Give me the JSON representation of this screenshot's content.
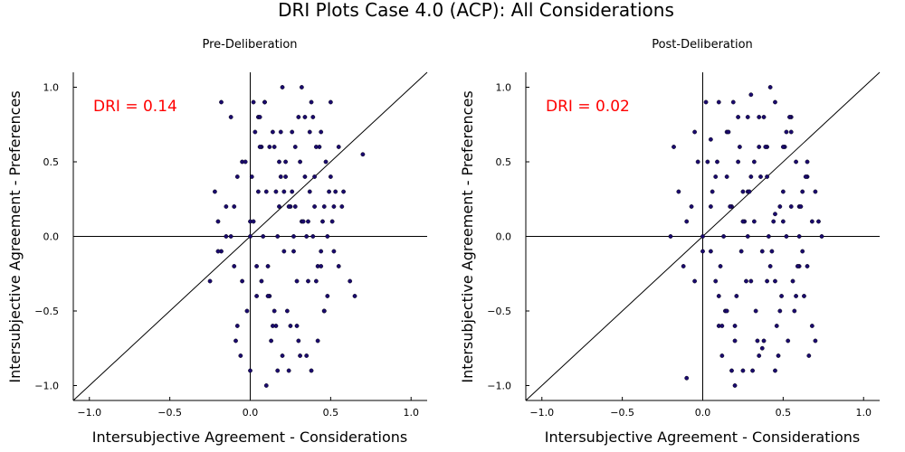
{
  "figure": {
    "title": "DRI Plots Case 4.0 (ACP): All Considerations"
  },
  "chart_data": [
    {
      "type": "scatter",
      "title": "Pre-Deliberation",
      "xlabel": "Intersubjective Agreement - Considerations",
      "ylabel": "Intersubjective Agreement - Preferences",
      "xlim": [
        -1.1,
        1.1
      ],
      "ylim": [
        -1.1,
        1.1
      ],
      "xticks": [
        -1.0,
        -0.5,
        0.0,
        0.5,
        1.0
      ],
      "xtick_labels": [
        "−1.0",
        "−0.5",
        "0.0",
        "0.5",
        "1.0"
      ],
      "yticks": [
        -1.0,
        -0.5,
        0.0,
        0.5,
        1.0
      ],
      "ytick_labels": [
        "−1.0",
        "−0.5",
        "0.0",
        "0.5",
        "1.0"
      ],
      "annotation": "DRI = 0.14",
      "annotation_color": "#ff0000",
      "point_color": "#1a0a6e",
      "reference_lines": [
        "y = x",
        "x = 0",
        "y = 0"
      ],
      "grid": false,
      "x": [
        -0.25,
        -0.22,
        -0.2,
        -0.18,
        -0.15,
        -0.12,
        -0.1,
        -0.08,
        -0.05,
        -0.02,
        0.0,
        0.02,
        0.05,
        0.07,
        0.1,
        0.12,
        0.14,
        0.16,
        0.18,
        0.2,
        0.22,
        0.24,
        0.26,
        0.28,
        0.3,
        0.32,
        0.34,
        0.36,
        0.38,
        0.4,
        0.42,
        0.44,
        0.46,
        0.48,
        0.5,
        0.52,
        0.55,
        0.58,
        0.62,
        0.65,
        0.7,
        -0.2,
        -0.15,
        -0.1,
        -0.05,
        0.0,
        0.05,
        0.1,
        0.15,
        0.2,
        0.25,
        0.3,
        0.35,
        0.4,
        0.45,
        0.5,
        0.55,
        -0.18,
        -0.08,
        0.03,
        0.08,
        0.13,
        0.18,
        0.23,
        0.28,
        0.33,
        0.38,
        0.43,
        0.48,
        0.53,
        -0.12,
        -0.06,
        0.01,
        0.06,
        0.11,
        0.17,
        0.21,
        0.27,
        0.31,
        0.37,
        0.41,
        0.46,
        0.51,
        0.57,
        -0.09,
        -0.03,
        0.04,
        0.09,
        0.15,
        0.19,
        0.25,
        0.29,
        0.35,
        0.39,
        0.44,
        0.49,
        0.02,
        0.07,
        0.12,
        0.17,
        0.22,
        0.27,
        0.32,
        0.37,
        0.42,
        0.47,
        0.52,
        0.0,
        0.06,
        0.11,
        0.16,
        0.21,
        0.26,
        0.31,
        0.36,
        0.41,
        0.46,
        0.04,
        0.09,
        0.14,
        0.19,
        0.24,
        0.29,
        0.34,
        0.39,
        0.44
      ],
      "y": [
        -0.3,
        0.3,
        0.1,
        -0.1,
        0.2,
        0.0,
        -0.2,
        0.4,
        0.5,
        -0.5,
        0.1,
        0.9,
        0.8,
        0.6,
        0.3,
        -0.4,
        0.7,
        -0.6,
        0.2,
        -0.8,
        0.5,
        -0.9,
        0.3,
        0.6,
        -0.7,
        0.1,
        0.4,
        -0.3,
        0.9,
        0.2,
        -0.2,
        0.7,
        -0.5,
        0.0,
        0.4,
        -0.1,
        0.6,
        0.3,
        -0.3,
        -0.4,
        0.55,
        -0.1,
        0.0,
        0.2,
        -0.3,
        -0.9,
        0.3,
        -1.0,
        0.6,
        1.0,
        -0.6,
        0.8,
        -0.8,
        0.4,
        0.1,
        0.9,
        -0.2,
        0.9,
        -0.6,
        0.7,
        0.0,
        -0.7,
        0.5,
        -0.5,
        0.2,
        0.1,
        -0.9,
        0.6,
        -0.4,
        0.3,
        0.8,
        -0.8,
        0.4,
        0.6,
        -0.2,
        0.0,
        0.3,
        -0.1,
        0.5,
        0.7,
        -0.3,
        0.2,
        0.1,
        0.2,
        -0.7,
        0.5,
        -0.4,
        0.9,
        -0.5,
        0.7,
        0.2,
        -0.6,
        0.0,
        0.8,
        -0.2,
        0.3,
        0.1,
        -0.3,
        0.6,
        -0.9,
        0.4,
        0.0,
        1.0,
        0.3,
        -0.7,
        0.5,
        0.2,
        0.0,
        0.8,
        -0.4,
        0.3,
        -0.1,
        0.7,
        -0.8,
        0.1,
        0.6,
        -0.5,
        -0.2,
        0.9,
        -0.6,
        0.4,
        0.2,
        -0.3,
        0.8,
        0.0,
        -0.1
      ]
    },
    {
      "type": "scatter",
      "title": "Post-Deliberation",
      "xlabel": "Intersubjective Agreement - Considerations",
      "ylabel": "Intersubjective Agreement - Preferences",
      "xlim": [
        -1.1,
        1.1
      ],
      "ylim": [
        -1.1,
        1.1
      ],
      "xticks": [
        -1.0,
        -0.5,
        0.0,
        0.5,
        1.0
      ],
      "xtick_labels": [
        "−1.0",
        "−0.5",
        "0.0",
        "0.5",
        "1.0"
      ],
      "yticks": [
        -1.0,
        -0.5,
        0.0,
        0.5,
        1.0
      ],
      "ytick_labels": [
        "−1.0",
        "−0.5",
        "0.0",
        "0.5",
        "1.0"
      ],
      "annotation": "DRI = 0.02",
      "annotation_color": "#ff0000",
      "point_color": "#1a0a6e",
      "reference_lines": [
        "y = x",
        "x = 0",
        "y = 0"
      ],
      "grid": false,
      "x": [
        -0.2,
        -0.18,
        -0.15,
        -0.12,
        -0.1,
        -0.07,
        -0.05,
        -0.03,
        0.0,
        0.02,
        0.05,
        0.08,
        0.1,
        0.12,
        0.15,
        0.18,
        0.2,
        0.22,
        0.25,
        0.28,
        0.3,
        0.32,
        0.35,
        0.38,
        0.4,
        0.42,
        0.45,
        0.48,
        0.5,
        0.52,
        0.55,
        0.58,
        0.6,
        0.62,
        0.65,
        0.68,
        0.7,
        0.72,
        0.74,
        -0.1,
        -0.05,
        0.0,
        0.05,
        0.1,
        0.15,
        0.2,
        0.25,
        0.3,
        0.35,
        0.4,
        0.45,
        0.5,
        0.55,
        0.6,
        0.65,
        0.7,
        0.03,
        0.08,
        0.13,
        0.18,
        0.23,
        0.28,
        0.33,
        0.38,
        0.43,
        0.48,
        0.53,
        0.58,
        0.63,
        0.68,
        0.06,
        0.11,
        0.16,
        0.21,
        0.26,
        0.31,
        0.36,
        0.41,
        0.46,
        0.51,
        0.56,
        0.61,
        0.66,
        0.09,
        0.14,
        0.19,
        0.24,
        0.29,
        0.34,
        0.39,
        0.44,
        0.49,
        0.54,
        0.59,
        0.64,
        0.12,
        0.17,
        0.22,
        0.27,
        0.32,
        0.37,
        0.42,
        0.47,
        0.52,
        0.57,
        0.62,
        0.1,
        0.2,
        0.3,
        0.4,
        0.5,
        0.6,
        0.15,
        0.25,
        0.35,
        0.45,
        0.55,
        0.65,
        0.05,
        0.45,
        0.37,
        0.28
      ],
      "y": [
        0.0,
        0.6,
        0.3,
        -0.2,
        0.1,
        0.2,
        -0.3,
        0.5,
        0.0,
        0.9,
        -0.1,
        0.4,
        -0.4,
        -0.8,
        0.7,
        0.2,
        -0.6,
        0.5,
        -0.9,
        0.8,
        -0.3,
        0.1,
        0.6,
        -0.7,
        0.4,
        -0.2,
        0.9,
        -0.5,
        0.3,
        0.0,
        0.7,
        -0.4,
        0.2,
        -0.1,
        0.5,
        -0.6,
        0.3,
        0.1,
        0.0,
        -0.95,
        0.7,
        -0.1,
        0.2,
        -0.6,
        0.4,
        -1.0,
        0.3,
        0.95,
        -0.8,
        0.6,
        -0.3,
        0.1,
        0.8,
        -0.2,
        0.4,
        -0.7,
        0.5,
        -0.3,
        0.0,
        -0.9,
        0.6,
        0.3,
        -0.5,
        0.8,
        -0.1,
        0.2,
        -0.7,
        0.5,
        -0.4,
        0.1,
        0.3,
        -0.2,
        0.7,
        -0.4,
        0.1,
        -0.9,
        0.4,
        0.0,
        -0.6,
        0.6,
        -0.3,
        0.2,
        -0.8,
        0.5,
        -0.5,
        0.9,
        -0.1,
        0.3,
        -0.7,
        0.6,
        0.1,
        -0.4,
        0.8,
        -0.2,
        0.4,
        -0.6,
        0.2,
        0.8,
        -0.3,
        0.5,
        -0.1,
        1.0,
        -0.8,
        0.7,
        -0.5,
        0.3,
        0.9,
        -0.7,
        0.4,
        -0.3,
        0.6,
        0.0,
        -0.5,
        0.1,
        0.8,
        -0.9,
        0.2,
        -0.2,
        0.65,
        0.15,
        -0.75,
        0.0
      ]
    }
  ]
}
